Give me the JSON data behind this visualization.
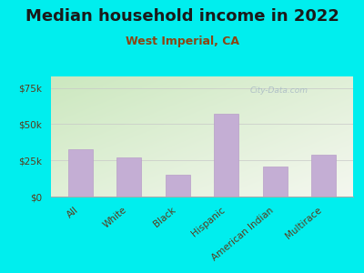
{
  "title": "Median household income in 2022",
  "subtitle": "West Imperial, CA",
  "categories": [
    "All",
    "White",
    "Black",
    "Hispanic",
    "American Indian",
    "Multirace"
  ],
  "values": [
    33000,
    27000,
    15000,
    57000,
    21000,
    29000
  ],
  "bar_color": "#c4aed4",
  "bar_edge_color": "#b89ec8",
  "background_color": "#00EEEE",
  "title_color": "#1a1a1a",
  "subtitle_color": "#8B4513",
  "tick_label_color": "#5a3a1a",
  "ytick_labels": [
    "$0",
    "$25k",
    "$50k",
    "$75k"
  ],
  "ytick_values": [
    0,
    25000,
    50000,
    75000
  ],
  "ylim": [
    0,
    83000
  ],
  "watermark": "City-Data.com",
  "title_fontsize": 13,
  "subtitle_fontsize": 9,
  "tick_fontsize": 7.5
}
